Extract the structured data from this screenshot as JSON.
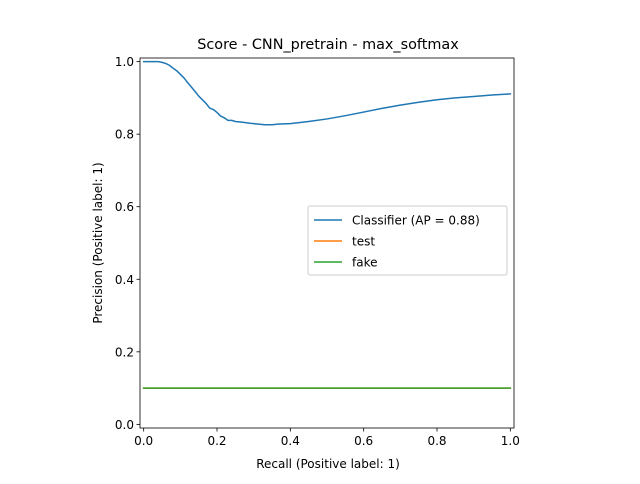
{
  "chart_data": {
    "type": "line",
    "title": "Score - CNN_pretrain - max_softmax",
    "xlabel": "Recall (Positive label: 1)",
    "ylabel": "Precision (Positive label: 1)",
    "xlim": [
      -0.01,
      1.01
    ],
    "ylim": [
      -0.01,
      1.01
    ],
    "x_ticks": [
      0.0,
      0.2,
      0.4,
      0.6,
      0.8,
      1.0
    ],
    "x_tick_labels": [
      "0.0",
      "0.2",
      "0.4",
      "0.6",
      "0.8",
      "1.0"
    ],
    "y_ticks": [
      0.0,
      0.2,
      0.4,
      0.6,
      0.8,
      1.0
    ],
    "y_tick_labels": [
      "0.0",
      "0.2",
      "0.4",
      "0.6",
      "0.8",
      "1.0"
    ],
    "grid": false,
    "legend_position": "center-right",
    "series": [
      {
        "name": "Classifier (AP = 0.88)",
        "color": "#1f77b4",
        "x": [
          0.0,
          0.01,
          0.02,
          0.03,
          0.04,
          0.05,
          0.06,
          0.07,
          0.08,
          0.09,
          0.1,
          0.11,
          0.12,
          0.13,
          0.14,
          0.15,
          0.16,
          0.17,
          0.18,
          0.19,
          0.2,
          0.21,
          0.22,
          0.23,
          0.24,
          0.25,
          0.27,
          0.29,
          0.31,
          0.33,
          0.35,
          0.37,
          0.4,
          0.45,
          0.5,
          0.55,
          0.6,
          0.65,
          0.7,
          0.75,
          0.8,
          0.85,
          0.9,
          0.95,
          1.0
        ],
        "y": [
          1.0,
          1.0,
          1.0,
          1.0,
          1.0,
          0.998,
          0.995,
          0.99,
          0.982,
          0.975,
          0.965,
          0.955,
          0.942,
          0.93,
          0.918,
          0.905,
          0.895,
          0.885,
          0.872,
          0.868,
          0.86,
          0.85,
          0.845,
          0.838,
          0.838,
          0.835,
          0.833,
          0.83,
          0.828,
          0.826,
          0.826,
          0.828,
          0.829,
          0.835,
          0.842,
          0.851,
          0.861,
          0.871,
          0.88,
          0.888,
          0.895,
          0.9,
          0.904,
          0.908,
          0.911
        ]
      },
      {
        "name": "test",
        "color": "#ff7f0e",
        "x": [
          0.0,
          1.0
        ],
        "y": [
          0.1,
          0.1
        ]
      },
      {
        "name": "fake",
        "color": "#2ca02c",
        "x": [
          0.0,
          1.0
        ],
        "y": [
          0.1,
          0.1
        ]
      }
    ]
  }
}
